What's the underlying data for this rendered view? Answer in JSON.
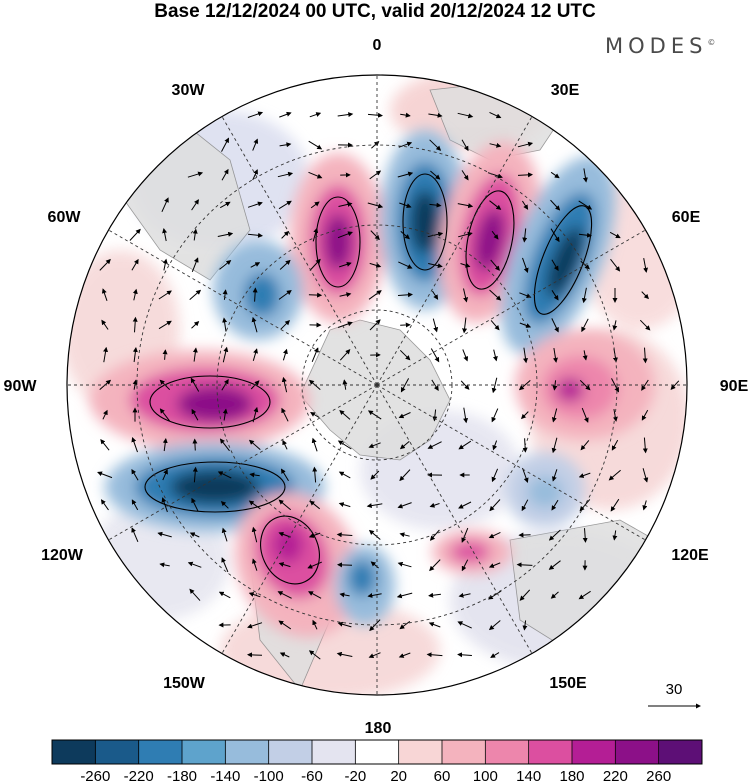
{
  "title": "Base 12/12/2024 00 UTC, valid 20/12/2024 12 UTC",
  "brand": {
    "text": "MODES",
    "mark": "©"
  },
  "longitude_labels": [
    "0",
    "30E",
    "60E",
    "90E",
    "120E",
    "150E",
    "180",
    "150W",
    "120W",
    "90W",
    "60W",
    "30W"
  ],
  "reference_vector": {
    "value": "30",
    "icon": "arrow-right-icon"
  },
  "colorbar": {
    "ticks": [
      "-260",
      "-220",
      "-180",
      "-140",
      "-100",
      "-60",
      "-20",
      "20",
      "60",
      "100",
      "140",
      "180",
      "220",
      "260"
    ],
    "colors": [
      "#0d3a5c",
      "#1a5a8a",
      "#2f7db3",
      "#5ea3cc",
      "#97bcdc",
      "#c2cfe6",
      "#e4e4f0",
      "#ffffff",
      "#f8d6d6",
      "#f4b3be",
      "#ed86ac",
      "#dc4fa0",
      "#b41e95",
      "#8c1088",
      "#5d0f76"
    ]
  },
  "map_style": {
    "land": "#dcdcdc",
    "coast": "#888888",
    "rim": "#000000",
    "graticule": "#333333"
  }
}
